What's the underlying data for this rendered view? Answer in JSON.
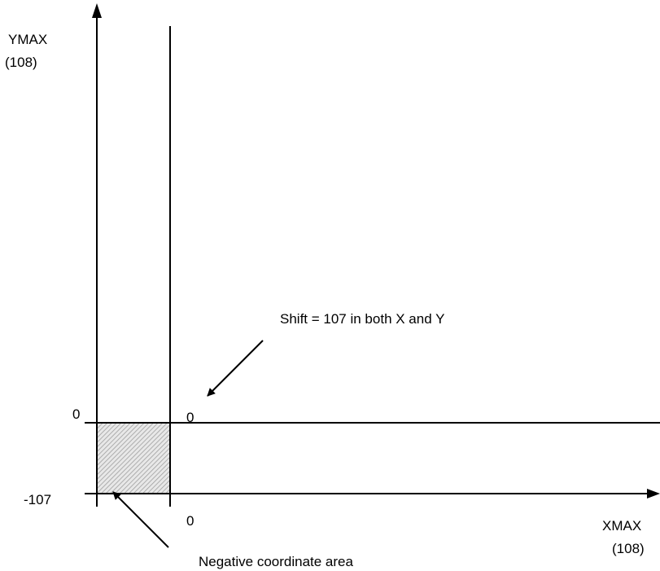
{
  "diagram": {
    "y_axis_label": "YMAX",
    "y_axis_max_value": "(108)",
    "x_axis_label": "XMAX",
    "x_axis_max_value": "(108)",
    "y_zero_label": "0",
    "y_min_label": "-107",
    "origin_zero_label": "0",
    "x_zero_label": "0",
    "shift_annotation": "Shift = 107 in both X and Y",
    "negative_area_annotation": "Negative coordinate area"
  },
  "colors": {
    "line": "#000000",
    "hatch": "#9a9a9a",
    "background": "#ffffff"
  }
}
